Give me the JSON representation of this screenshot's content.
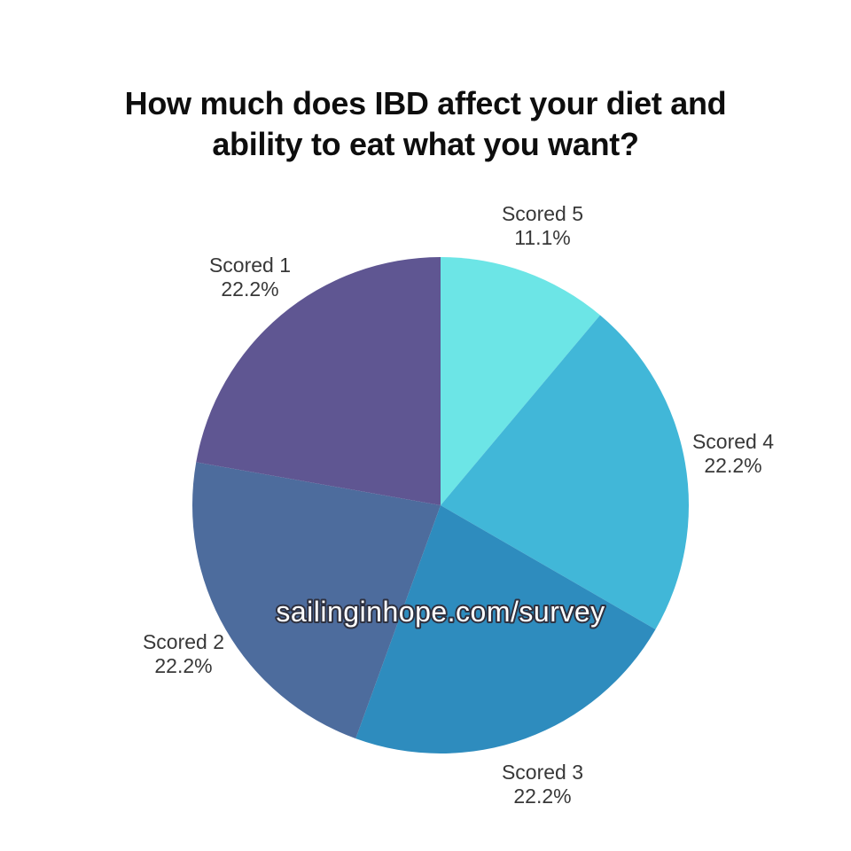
{
  "page": {
    "background_color": "#ffffff",
    "title_lines": [
      "How much does IBD affect your diet and",
      "ability to eat what you want?"
    ],
    "title_color": "#0e0e0e"
  },
  "watermark": {
    "text": "sailinginhope.com/survey",
    "fill_color": "#ffffff",
    "outline_color": "#2e3140"
  },
  "chart_data": {
    "type": "pie",
    "title": "How much does IBD affect your diet and ability to eat what you want?",
    "legend_position": "none",
    "labels_position": "outside",
    "start_angle_deg": 0,
    "direction": "clockwise",
    "categories": [
      "Scored 5",
      "Scored 4",
      "Scored 3",
      "Scored 2",
      "Scored 1"
    ],
    "values": [
      11.1,
      22.2,
      22.2,
      22.2,
      22.2
    ],
    "value_labels": [
      "11.1%",
      "22.2%",
      "22.2%",
      "22.2%",
      "22.2%"
    ],
    "colors": [
      "#6ce5e6",
      "#41b7d8",
      "#2e8cbe",
      "#4d6c9d",
      "#5f5692"
    ],
    "label_text_color": "#383838"
  }
}
